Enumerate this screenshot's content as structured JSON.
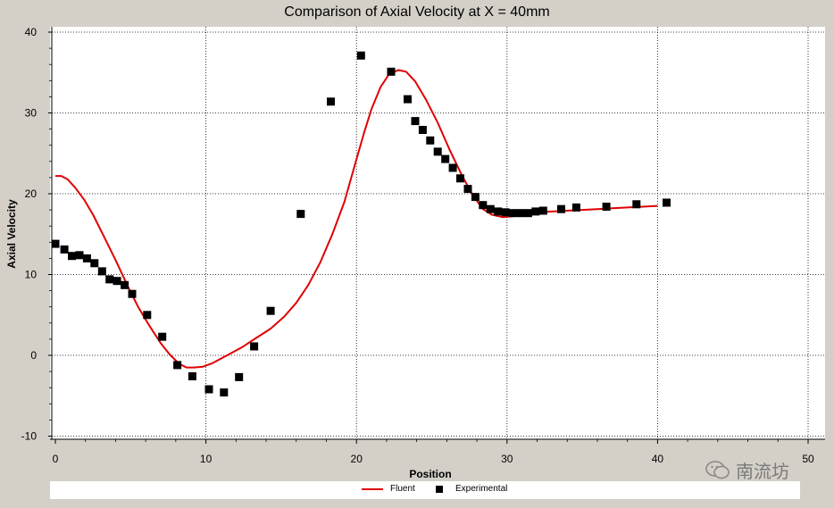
{
  "chart_data": {
    "type": "scatter",
    "title": "Comparison of Axial Velocity at X = 40mm",
    "xlabel": "Position",
    "ylabel": "Axial Velocity",
    "xlim": [
      0,
      50
    ],
    "ylim": [
      -10,
      40
    ],
    "x_ticks": [
      "0",
      "10",
      "20",
      "30",
      "40",
      "50"
    ],
    "y_ticks": [
      "-10",
      "0",
      "10",
      "20",
      "30",
      "40"
    ],
    "grid": true,
    "legend_position": "bottom",
    "series": [
      {
        "name": "Fluent",
        "type": "line",
        "color": "#e00000",
        "points": [
          [
            0,
            22.2
          ],
          [
            0.4,
            22.2
          ],
          [
            0.8,
            21.8
          ],
          [
            1.3,
            20.8
          ],
          [
            1.9,
            19.3
          ],
          [
            2.5,
            17.4
          ],
          [
            3.2,
            14.8
          ],
          [
            4.0,
            11.8
          ],
          [
            4.8,
            8.6
          ],
          [
            5.5,
            6.0
          ],
          [
            6.2,
            3.8
          ],
          [
            7.0,
            1.5
          ],
          [
            7.6,
            0.1
          ],
          [
            8.2,
            -1.0
          ],
          [
            8.7,
            -1.5
          ],
          [
            9.2,
            -1.5
          ],
          [
            9.8,
            -1.4
          ],
          [
            10.4,
            -1.0
          ],
          [
            11.0,
            -0.4
          ],
          [
            11.6,
            0.2
          ],
          [
            12.4,
            1.0
          ],
          [
            13.3,
            2.1
          ],
          [
            14.3,
            3.3
          ],
          [
            15.2,
            4.8
          ],
          [
            16.0,
            6.5
          ],
          [
            16.8,
            8.7
          ],
          [
            17.6,
            11.5
          ],
          [
            18.4,
            15.0
          ],
          [
            19.2,
            19.0
          ],
          [
            19.9,
            23.6
          ],
          [
            20.5,
            27.5
          ],
          [
            21.0,
            30.5
          ],
          [
            21.6,
            33.2
          ],
          [
            22.2,
            34.9
          ],
          [
            22.8,
            35.3
          ],
          [
            23.3,
            35.1
          ],
          [
            23.9,
            33.9
          ],
          [
            24.6,
            31.7
          ],
          [
            25.4,
            28.8
          ],
          [
            26.2,
            25.4
          ],
          [
            27.0,
            22.3
          ],
          [
            27.7,
            19.9
          ],
          [
            28.4,
            18.1
          ],
          [
            29.0,
            17.4
          ],
          [
            29.7,
            17.1
          ],
          [
            30.4,
            17.2
          ],
          [
            31.2,
            17.5
          ],
          [
            32.0,
            17.7
          ],
          [
            33.0,
            17.8
          ],
          [
            34.0,
            17.9
          ],
          [
            35.0,
            18.0
          ],
          [
            36.0,
            18.1
          ],
          [
            37.0,
            18.2
          ],
          [
            38.0,
            18.3
          ],
          [
            39.0,
            18.4
          ],
          [
            40.0,
            18.5
          ]
        ]
      },
      {
        "name": "Experimental",
        "type": "scatter",
        "color": "#000000",
        "points": [
          [
            0,
            13.8
          ],
          [
            0.6,
            13.1
          ],
          [
            1.1,
            12.3
          ],
          [
            1.6,
            12.4
          ],
          [
            2.1,
            12.0
          ],
          [
            2.6,
            11.4
          ],
          [
            3.1,
            10.4
          ],
          [
            3.6,
            9.4
          ],
          [
            4.1,
            9.2
          ],
          [
            4.6,
            8.7
          ],
          [
            5.1,
            7.6
          ],
          [
            6.1,
            5.0
          ],
          [
            7.1,
            2.3
          ],
          [
            8.1,
            -1.2
          ],
          [
            9.1,
            -2.6
          ],
          [
            10.2,
            -4.2
          ],
          [
            11.2,
            -4.6
          ],
          [
            12.2,
            -2.7
          ],
          [
            13.2,
            1.1
          ],
          [
            14.3,
            5.5
          ],
          [
            16.3,
            17.5
          ],
          [
            18.3,
            31.4
          ],
          [
            20.3,
            37.1
          ],
          [
            22.3,
            35.1
          ],
          [
            23.4,
            31.7
          ],
          [
            23.9,
            29.0
          ],
          [
            24.4,
            27.9
          ],
          [
            24.9,
            26.6
          ],
          [
            25.4,
            25.2
          ],
          [
            25.9,
            24.3
          ],
          [
            26.4,
            23.2
          ],
          [
            26.9,
            21.9
          ],
          [
            27.4,
            20.6
          ],
          [
            27.9,
            19.6
          ],
          [
            28.4,
            18.6
          ],
          [
            28.9,
            18.1
          ],
          [
            29.4,
            17.8
          ],
          [
            29.9,
            17.7
          ],
          [
            30.4,
            17.6
          ],
          [
            30.9,
            17.6
          ],
          [
            31.4,
            17.6
          ],
          [
            31.9,
            17.8
          ],
          [
            32.4,
            17.9
          ],
          [
            33.6,
            18.1
          ],
          [
            34.6,
            18.3
          ],
          [
            36.6,
            18.4
          ],
          [
            38.6,
            18.7
          ],
          [
            40.6,
            18.9
          ]
        ]
      }
    ]
  },
  "legend": {
    "fluent_label": "Fluent",
    "experimental_label": "Experimental"
  },
  "watermark": {
    "text": "南流坊",
    "icon": "wechat-icon"
  }
}
